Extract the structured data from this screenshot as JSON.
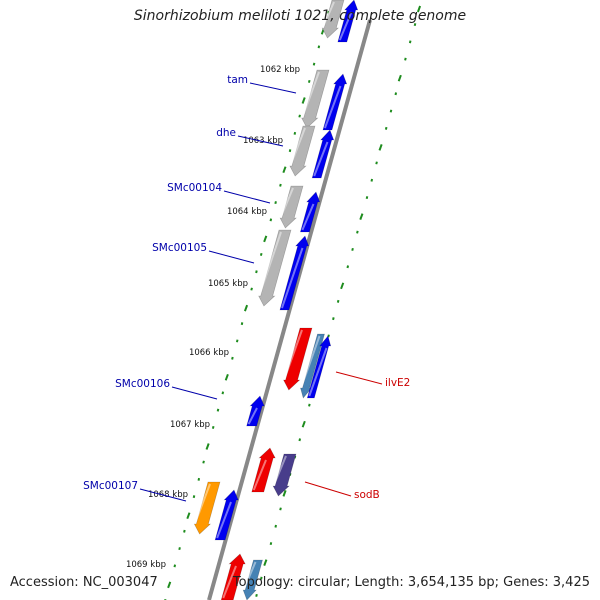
{
  "title": "Sinorhizobium meliloti 1021, complete genome",
  "accession_text": "Accession: NC_003047",
  "summary_text": "Topology: circular; Length: 3,654,135 bp; Genes: 3,425",
  "colors": {
    "backbone": "#888888",
    "tick": "#1e8c1e",
    "blue_label": "#0000aa",
    "red_label": "#cc0000",
    "gene_blue": "#0000ee",
    "gene_red": "#ee0000",
    "gene_gray": "#b4b4b4",
    "gene_orange": "#ff9900",
    "gene_steel": "#4682b4",
    "gene_purple": "#483d8b"
  },
  "kbp_labels": [
    "1062 kbp",
    "1063 kbp",
    "1064 kbp",
    "1065 kbp",
    "1066 kbp",
    "1067 kbp",
    "1068 kbp",
    "1069 kbp"
  ],
  "gene_labels": [
    {
      "text": "tam",
      "color": "blue"
    },
    {
      "text": "dhe",
      "color": "blue"
    },
    {
      "text": "SMc00104",
      "color": "blue"
    },
    {
      "text": "SMc00105",
      "color": "blue"
    },
    {
      "text": "SMc00106",
      "color": "blue"
    },
    {
      "text": "SMc00107",
      "color": "blue"
    },
    {
      "text": "ilvE2",
      "color": "red"
    },
    {
      "text": "sodB",
      "color": "red"
    }
  ]
}
